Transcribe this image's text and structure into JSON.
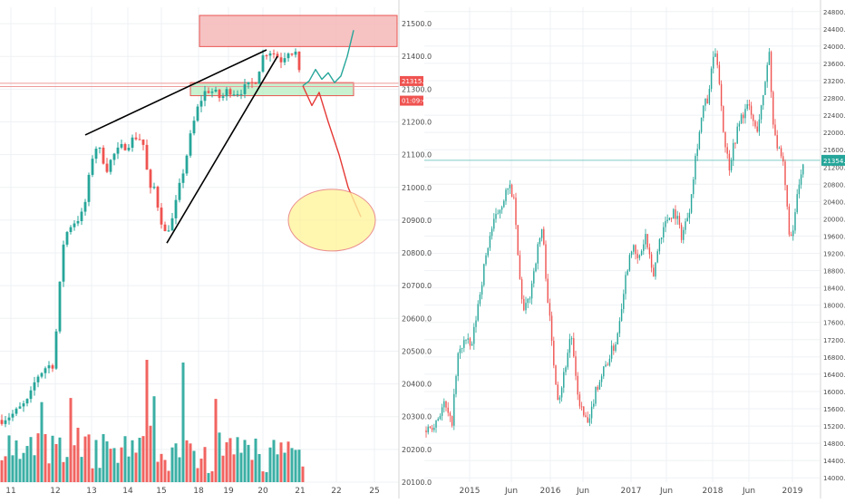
{
  "colors": {
    "up": "#26a69a",
    "down": "#ef5350",
    "grid": "#eef1f4",
    "axis_text": "#4a4a4a",
    "price_tag_red": "#ef5350",
    "price_tag_green": "#26a69a",
    "resistance_zone": "#f6b8b8",
    "support_zone": "#bff0c8",
    "forecast_up": "#26a69a",
    "forecast_down": "#e53935",
    "target_ellipse": "#fff59d",
    "trendline": "#000000"
  },
  "chart_data": [
    {
      "type": "candlestick",
      "title": "",
      "x_tick_labels": [
        "11",
        "12",
        "13",
        "14",
        "15",
        "18",
        "19",
        "20",
        "21",
        "22",
        "25"
      ],
      "y_axis": {
        "range": [
          20100,
          21550
        ],
        "tick_labels": [
          "21500.0",
          "21400.0",
          "21300.0",
          "21200.0",
          "21100.0",
          "21000.0",
          "20900.0",
          "20800.0",
          "20700.0",
          "20600.0",
          "20500.0",
          "20400.0",
          "20300.0",
          "20200.0",
          "20100.0"
        ]
      },
      "grid": true,
      "price_tags": [
        {
          "label": "21315.0",
          "value": 21315,
          "color": "red"
        },
        {
          "label": "01:09:43",
          "value": 21280,
          "color": "red"
        }
      ],
      "annotations": {
        "resistance_zone": {
          "low": 21430,
          "high": 21525
        },
        "support_zone": {
          "low": 21280,
          "high": 21320
        },
        "forecast_up_path": [
          21310,
          21325,
          21360,
          21330,
          21350,
          21320,
          21340,
          21400,
          21480
        ],
        "forecast_down_path": [
          21310,
          21250,
          21290,
          21200,
          21100,
          21000,
          20910
        ],
        "target_ellipse_center": 20900,
        "trendline_upper": [
          21160,
          21420
        ],
        "trendline_lower": [
          20830,
          21400
        ]
      }
    },
    {
      "type": "candlestick",
      "title": "",
      "x_tick_labels": [
        "2015",
        "Jun",
        "2016",
        "Jun",
        "2017",
        "Jun",
        "2018",
        "Jun",
        "2019"
      ],
      "y_axis": {
        "range": [
          13900,
          24900
        ],
        "tick_labels": [
          "24800.0",
          "24400.0",
          "24000.0",
          "23600.0",
          "23200.0",
          "22800.0",
          "22400.0",
          "22000.0",
          "21600.0",
          "21200.0",
          "20800.0",
          "20400.0",
          "20000.0",
          "19600.0",
          "19200.0",
          "18800.0",
          "18400.0",
          "18000.0",
          "17600.0",
          "17200.0",
          "16800.0",
          "16400.0",
          "16000.0",
          "15600.0",
          "15200.0",
          "14800.0",
          "14400.0",
          "14000.0"
        ]
      },
      "grid": true,
      "price_tags": [
        {
          "label": "21354.5",
          "value": 21354.5,
          "color": "green"
        }
      ]
    }
  ]
}
